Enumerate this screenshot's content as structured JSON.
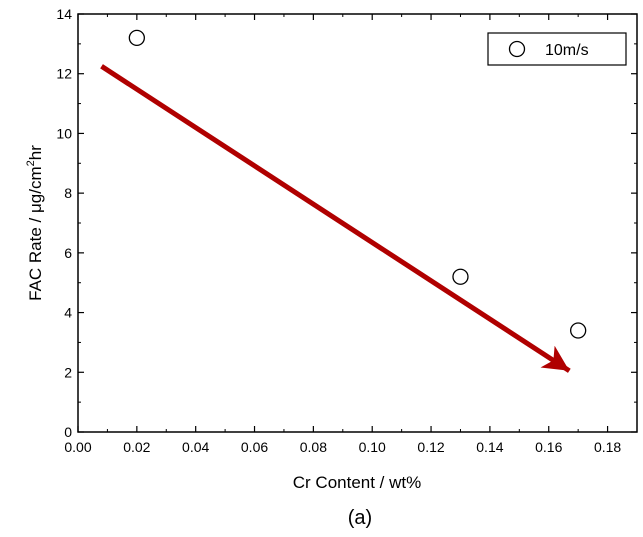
{
  "chart_data": {
    "type": "scatter",
    "xlabel": "Cr Content / wt%",
    "ylabel_parts": [
      "FAC Rate / ",
      "μg/cm",
      "2",
      "hr"
    ],
    "xlim": [
      0.0,
      0.19
    ],
    "ylim": [
      0,
      14
    ],
    "x_ticks": [
      "0.00",
      "0.02",
      "0.04",
      "0.06",
      "0.08",
      "0.10",
      "0.12",
      "0.14",
      "0.16",
      "0.18"
    ],
    "y_ticks": [
      "0",
      "2",
      "4",
      "6",
      "8",
      "10",
      "12",
      "14"
    ],
    "series": [
      {
        "name": "10m/s",
        "marker": "open-circle",
        "x": [
          0.02,
          0.13,
          0.17
        ],
        "y": [
          13.2,
          5.2,
          3.4
        ]
      }
    ],
    "annotation_arrow": {
      "from": [
        0.008,
        12.25
      ],
      "to": [
        0.167,
        2.05
      ],
      "color": "#b00000"
    },
    "legend_position": "top-right",
    "grid": false
  },
  "caption": "(a)"
}
